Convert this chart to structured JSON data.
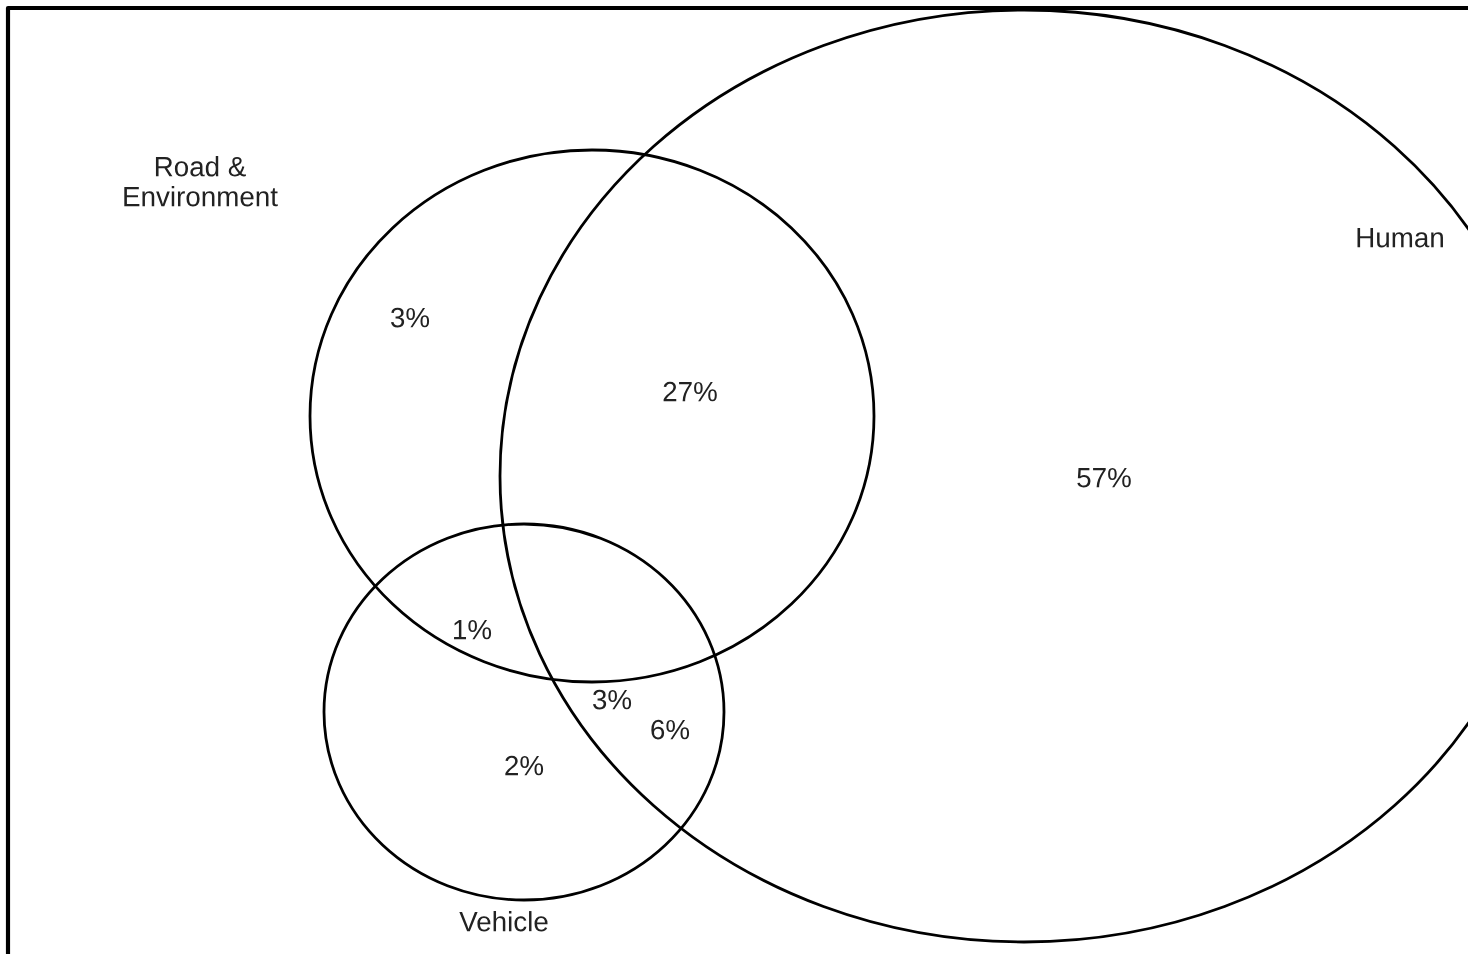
{
  "chart_data": {
    "type": "other",
    "categories": [
      null,
      null,
      null,
      null,
      null,
      null,
      null
    ],
    "values": [
      3,
      27,
      57,
      1,
      3,
      6,
      2
    ],
    "value_labels": [
      "3%",
      "27%",
      "57%",
      "1%",
      "3%",
      "6%",
      "2%"
    ],
    "annotations": [
      "Road &\nEnvironment",
      "Human",
      "Vehicle"
    ]
  }
}
